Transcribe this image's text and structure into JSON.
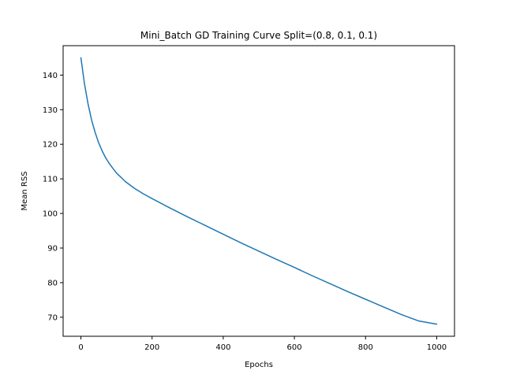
{
  "chart_data": {
    "type": "line",
    "title": "Mini_Batch GD Training Curve Split=(0.8, 0.1, 0.1)",
    "xlabel": "Epochs",
    "ylabel": "Mean RSS",
    "xlim": [
      -50,
      1050
    ],
    "ylim": [
      64.5,
      148.5
    ],
    "xticks": [
      0,
      200,
      400,
      600,
      800,
      1000
    ],
    "yticks": [
      70,
      80,
      90,
      100,
      110,
      120,
      130,
      140
    ],
    "grid": false,
    "legend": "none",
    "line_color": "#1f77b4",
    "series": [
      {
        "x": [
          0,
          10,
          20,
          30,
          40,
          50,
          60,
          70,
          80,
          90,
          100,
          125,
          150,
          175,
          200,
          250,
          300,
          350,
          400,
          450,
          500,
          550,
          600,
          650,
          700,
          750,
          800,
          850,
          900,
          950,
          1000
        ],
        "y": [
          145.0,
          137.5,
          131.7,
          127.0,
          123.4,
          120.4,
          118.0,
          116.0,
          114.4,
          113.0,
          111.7,
          109.2,
          107.3,
          105.7,
          104.3,
          101.6,
          99.0,
          96.5,
          94.0,
          91.5,
          89.1,
          86.7,
          84.4,
          82.0,
          79.7,
          77.4,
          75.2,
          73.0,
          70.8,
          68.9,
          68.0
        ]
      }
    ]
  }
}
